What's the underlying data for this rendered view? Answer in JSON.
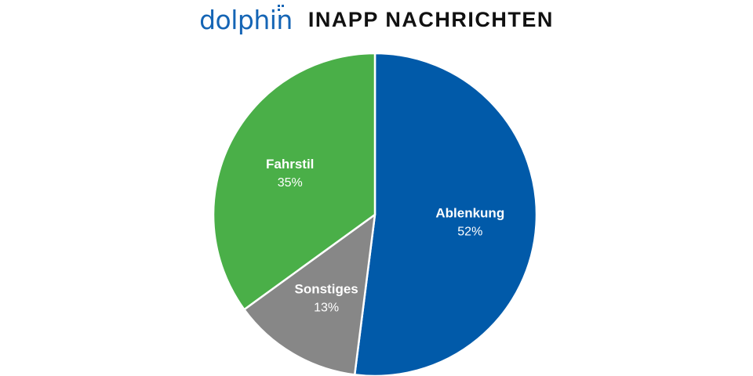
{
  "header": {
    "logo_text": "dolphin",
    "title": "INAPP NACHRICHTEN"
  },
  "colors": {
    "logo": "#1565b5",
    "Ablenkung": "#015aa9",
    "Sonstiges": "#878787",
    "Fahrstil": "#4aaf48",
    "slice_border": "#ffffff"
  },
  "chart_data": {
    "type": "pie",
    "title": "INAPP NACHRICHTEN",
    "slices": [
      {
        "label": "Ablenkung",
        "value": 52,
        "display": "52%"
      },
      {
        "label": "Sonstiges",
        "value": 13,
        "display": "13%"
      },
      {
        "label": "Fahrstil",
        "value": 35,
        "display": "35%"
      }
    ],
    "legend": "none"
  }
}
